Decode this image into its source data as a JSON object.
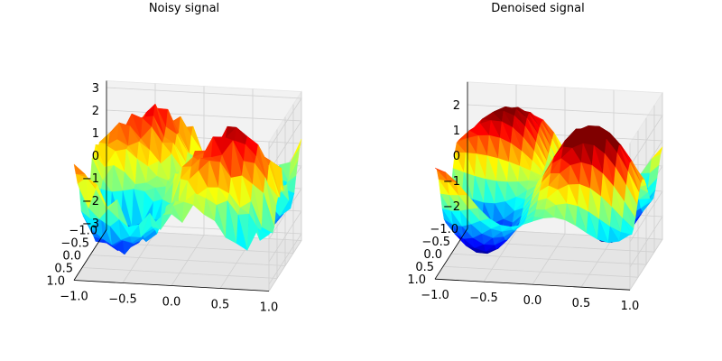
{
  "chart_data": [
    {
      "type": "surface3d",
      "title": "Noisy signal",
      "xticks": [
        "−1.0",
        "−0.5",
        "0.0",
        "0.5",
        "1.0"
      ],
      "yticks": [
        "−1.0",
        "−0.5",
        "0.0",
        "0.5",
        "1.0"
      ],
      "zticks": [
        "−3",
        "−2",
        "−1",
        "0",
        "1",
        "2",
        "3"
      ],
      "xlim": [
        -1,
        1
      ],
      "ylim": [
        -1,
        1
      ],
      "zlim": [
        -3.3,
        3.3
      ],
      "zvalues": [
        -3,
        -2,
        -1,
        0,
        1,
        2,
        3
      ],
      "noise": 0.35,
      "colormap": "jet",
      "grid": true
    },
    {
      "type": "surface3d",
      "title": "Denoised signal",
      "xticks": [
        "−1.0",
        "−0.5",
        "0.0",
        "0.5",
        "1.0"
      ],
      "yticks": [
        "−1.0",
        "−0.5",
        "0.0",
        "0.5",
        "1.0"
      ],
      "zticks": [
        "−2",
        "−1",
        "0",
        "1",
        "2"
      ],
      "xlim": [
        -1,
        1
      ],
      "ylim": [
        -1,
        1
      ],
      "zlim": [
        -2.9,
        2.9
      ],
      "zvalues": [
        -2,
        -1,
        0,
        1,
        2
      ],
      "noise": 0.0,
      "colormap": "jet",
      "grid": true
    }
  ]
}
